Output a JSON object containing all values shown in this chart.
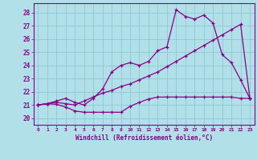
{
  "background_color": "#b2e0e8",
  "grid_color": "#90c8d4",
  "line_color": "#880088",
  "xlabel": "Windchill (Refroidissement éolien,°C)",
  "xlim": [
    -0.5,
    23.5
  ],
  "ylim": [
    19.5,
    28.7
  ],
  "yticks": [
    20,
    21,
    22,
    23,
    24,
    25,
    26,
    27,
    28
  ],
  "xticks": [
    0,
    1,
    2,
    3,
    4,
    5,
    6,
    7,
    8,
    9,
    10,
    11,
    12,
    13,
    14,
    15,
    16,
    17,
    18,
    19,
    20,
    21,
    22,
    23
  ],
  "series1_x": [
    0,
    1,
    2,
    3,
    4,
    5,
    6,
    7,
    8,
    9,
    10,
    11,
    12,
    13,
    14,
    15,
    16,
    17,
    18,
    19,
    20,
    21,
    22,
    23
  ],
  "series1_y": [
    21.0,
    21.1,
    21.05,
    20.85,
    20.55,
    20.45,
    20.45,
    20.45,
    20.45,
    20.45,
    20.9,
    21.2,
    21.45,
    21.6,
    21.6,
    21.6,
    21.6,
    21.6,
    21.6,
    21.6,
    21.6,
    21.6,
    21.5,
    21.5
  ],
  "series2_x": [
    0,
    1,
    2,
    3,
    4,
    5,
    6,
    7,
    8,
    9,
    10,
    11,
    12,
    13,
    14,
    15,
    16,
    17,
    18,
    19,
    20,
    21,
    22,
    23
  ],
  "series2_y": [
    21.0,
    21.1,
    21.2,
    21.1,
    21.0,
    21.3,
    21.6,
    21.9,
    22.1,
    22.4,
    22.6,
    22.9,
    23.2,
    23.5,
    23.9,
    24.3,
    24.7,
    25.1,
    25.5,
    25.9,
    26.3,
    26.7,
    27.1,
    21.5
  ],
  "series3_x": [
    0,
    1,
    2,
    3,
    4,
    5,
    6,
    7,
    8,
    9,
    10,
    11,
    12,
    13,
    14,
    15,
    16,
    17,
    18,
    19,
    20,
    21,
    22,
    23
  ],
  "series3_y": [
    21.0,
    21.1,
    21.3,
    21.5,
    21.2,
    21.0,
    21.5,
    22.2,
    23.5,
    24.0,
    24.2,
    24.0,
    24.3,
    25.1,
    25.4,
    28.2,
    27.7,
    27.5,
    27.8,
    27.2,
    24.8,
    24.2,
    22.9,
    21.5
  ]
}
